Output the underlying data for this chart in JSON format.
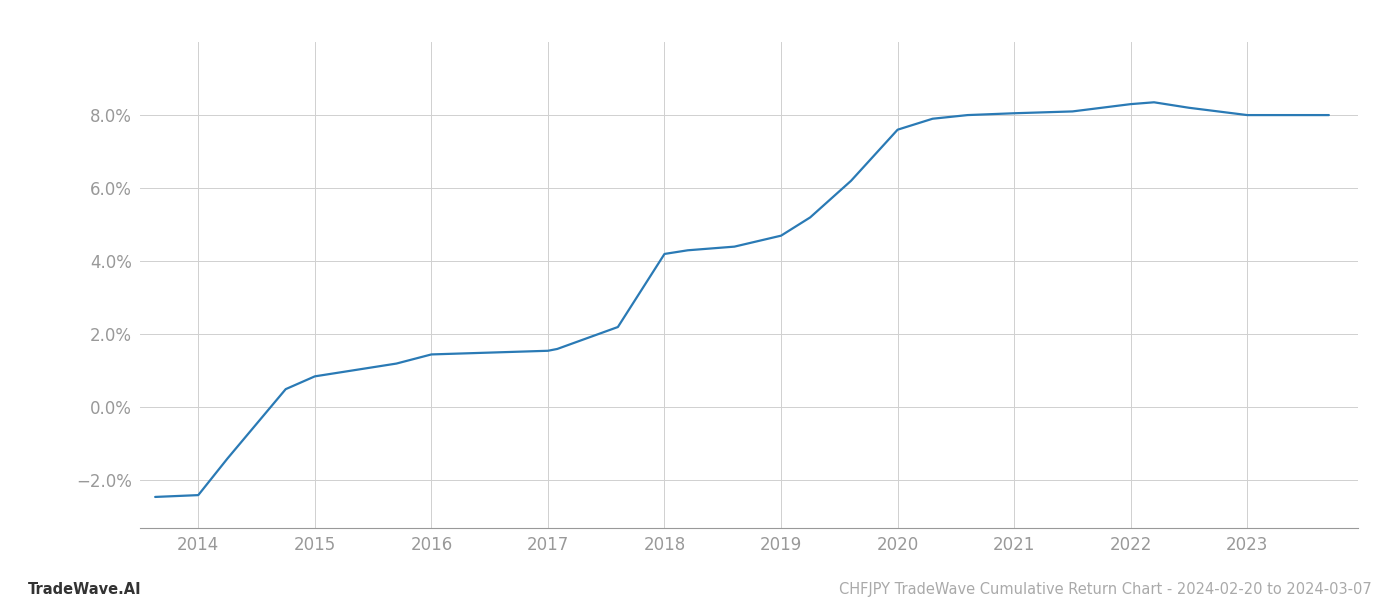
{
  "x_years": [
    2013.63,
    2014.0,
    2014.25,
    2014.75,
    2015.0,
    2015.3,
    2015.7,
    2016.0,
    2016.5,
    2017.0,
    2017.08,
    2017.6,
    2018.0,
    2018.2,
    2018.6,
    2019.0,
    2019.25,
    2019.6,
    2020.0,
    2020.3,
    2020.6,
    2021.0,
    2021.5,
    2022.0,
    2022.2,
    2022.5,
    2023.0,
    2023.7
  ],
  "y_values": [
    -0.0245,
    -0.024,
    -0.014,
    0.005,
    0.0085,
    0.01,
    0.012,
    0.0145,
    0.015,
    0.0155,
    0.016,
    0.022,
    0.042,
    0.043,
    0.044,
    0.047,
    0.052,
    0.062,
    0.076,
    0.079,
    0.08,
    0.0805,
    0.081,
    0.083,
    0.0835,
    0.082,
    0.08,
    0.08
  ],
  "line_color": "#2a7ab5",
  "line_width": 1.6,
  "background_color": "#ffffff",
  "grid_color": "#d0d0d0",
  "tick_label_color": "#999999",
  "footer_left": "TradeWave.AI",
  "footer_right": "CHFJPY TradeWave Cumulative Return Chart - 2024-02-20 to 2024-03-07",
  "footer_color": "#aaaaaa",
  "footer_left_color": "#333333",
  "footer_fontsize": 10.5,
  "xlim": [
    2013.5,
    2023.95
  ],
  "ylim": [
    -0.033,
    0.1
  ],
  "yticks": [
    -0.02,
    0.0,
    0.02,
    0.04,
    0.06,
    0.08
  ],
  "xticks": [
    2014,
    2015,
    2016,
    2017,
    2018,
    2019,
    2020,
    2021,
    2022,
    2023
  ],
  "spine_color": "#999999"
}
